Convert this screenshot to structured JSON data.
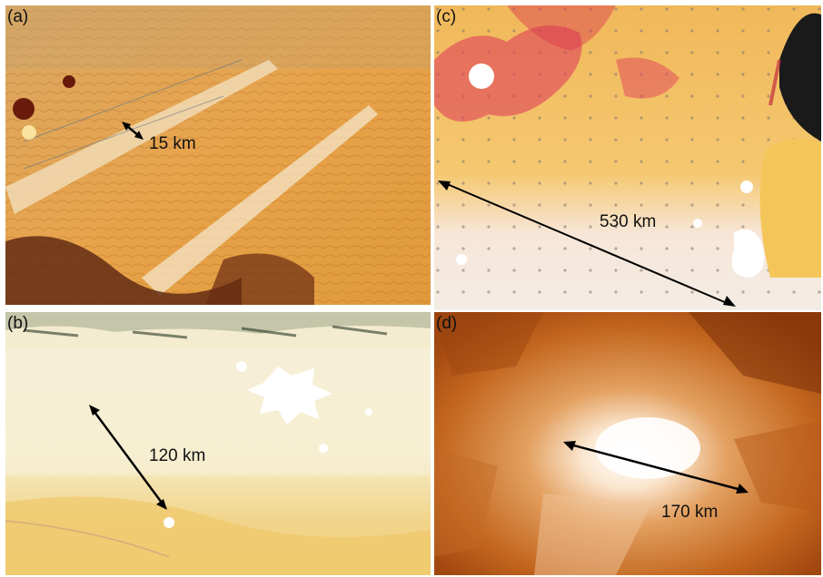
{
  "panels": {
    "a": {
      "label": "(a)",
      "scale_text": "15 km"
    },
    "b": {
      "label": "(b)",
      "scale_text": "120 km"
    },
    "c": {
      "label": "(c)",
      "scale_text": "530 km"
    },
    "d": {
      "label": "(d)",
      "scale_text": "170 km"
    }
  },
  "colors": {
    "desert_orange": "#e8a34a",
    "desert_pale": "#f6e6b4",
    "urban_white": "#ffffff",
    "vegetation_red": "#e0405a",
    "lake_dark": "#1a1a1a",
    "heat_brown": "#a0460f"
  }
}
